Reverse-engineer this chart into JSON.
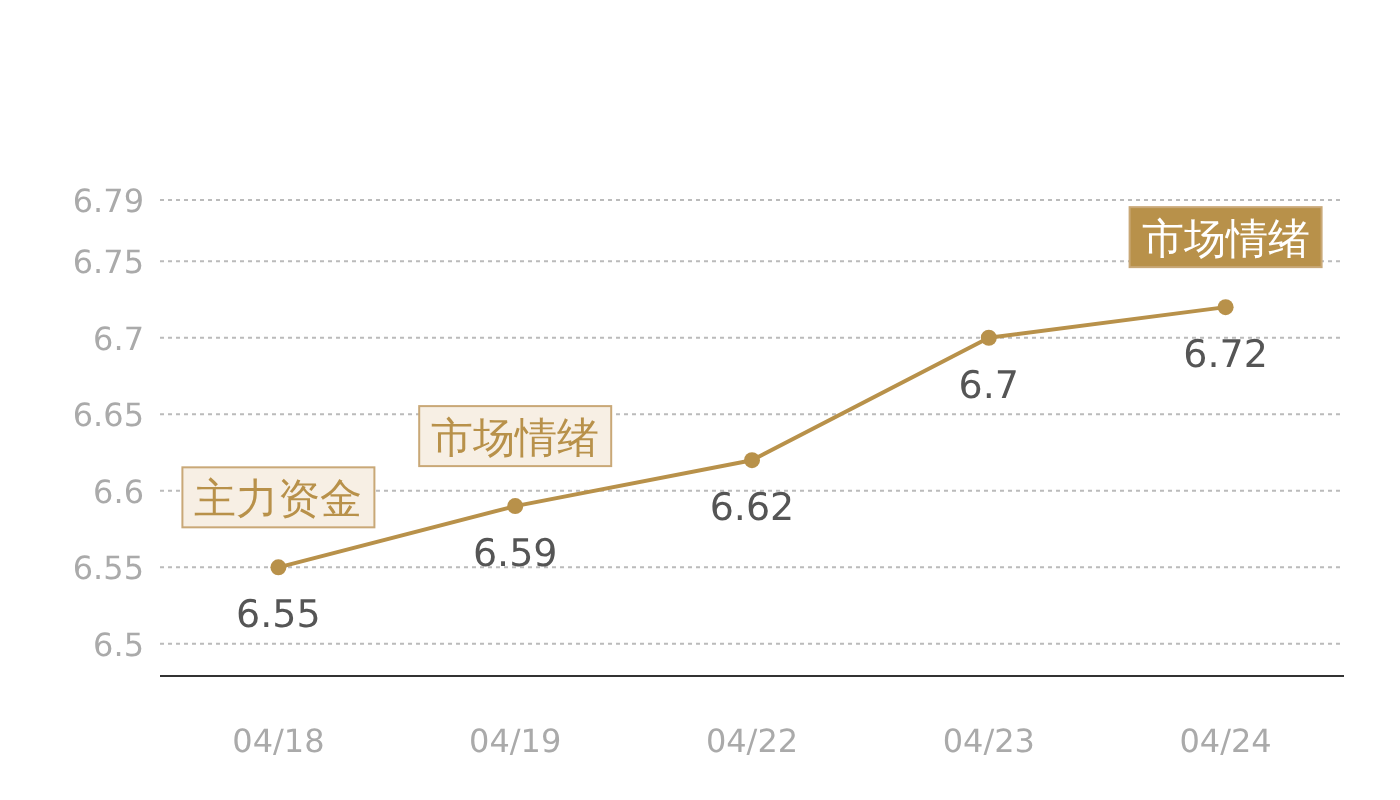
{
  "chart_data": {
    "type": "line",
    "categories": [
      "04/18",
      "04/19",
      "04/22",
      "04/23",
      "04/24"
    ],
    "series": [
      {
        "color": "#b8914a",
        "values": [
          6.55,
          6.59,
          6.62,
          6.7,
          6.72
        ]
      }
    ],
    "ylim": [
      6.479,
      6.79
    ],
    "yticks": [
      6.5,
      6.55,
      6.6,
      6.65,
      6.7,
      6.75,
      6.79
    ],
    "grid": "y",
    "marker": "circle",
    "line_style": "solid",
    "data_labels": true,
    "annotations": [
      {
        "text": "主力资金",
        "x": "04/18",
        "y": 6.55
      },
      {
        "text": "市场情绪",
        "x": "04/19",
        "y": 6.59
      },
      {
        "text": "市场情绪",
        "x": "04/24",
        "y": 6.72
      }
    ]
  }
}
